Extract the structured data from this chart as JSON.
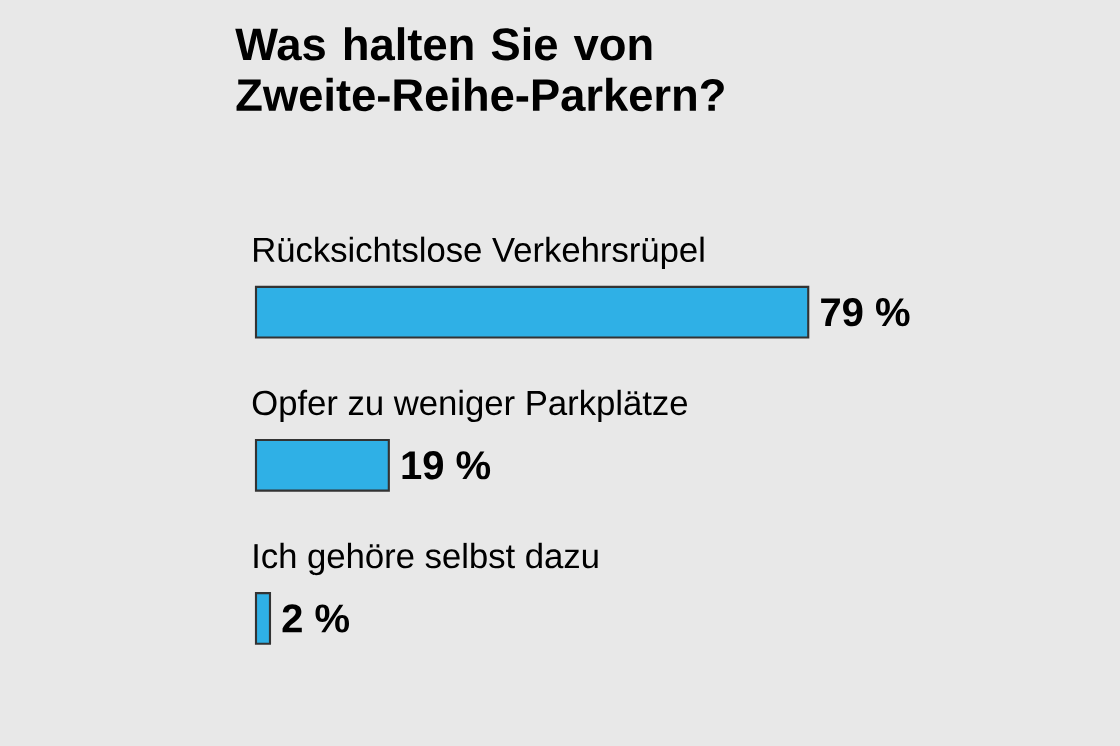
{
  "chart_data": {
    "type": "bar",
    "orientation": "horizontal",
    "title": "Was halten Sie von Zweite-Reihe-Parkern?",
    "categories": [
      "Rücksichtslose Verkehrsrüpel",
      "Opfer zu weniger Parkplätze",
      "Ich gehöre selbst dazu"
    ],
    "values": [
      79,
      19,
      2
    ],
    "value_labels": [
      "79 %",
      "19 %",
      "2 %"
    ],
    "color": "#2fb0e6"
  }
}
